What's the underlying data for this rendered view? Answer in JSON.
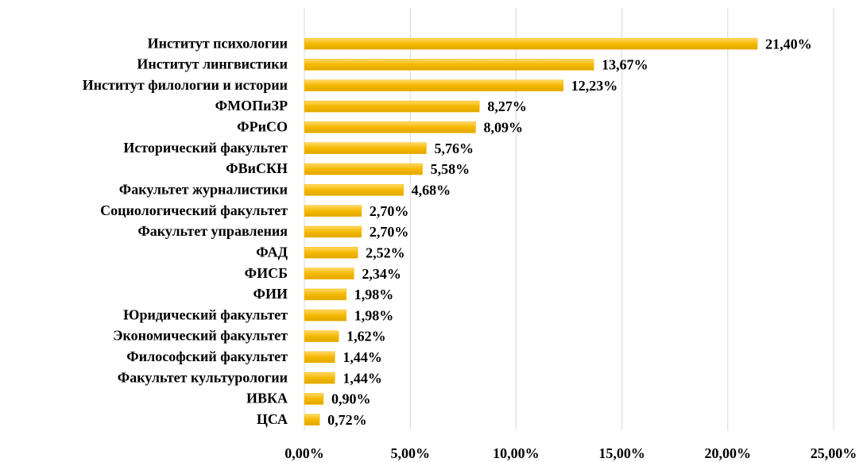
{
  "chart_data": {
    "type": "bar",
    "orientation": "horizontal",
    "categories": [
      "Институт психологии",
      "Институт лингвистики",
      "Институт филологии и истории",
      "ФМОПиЗР",
      "ФРиСО",
      "Исторический факультет",
      "ФВиСКН",
      "Факультет журналистики",
      "Социологический факультет",
      "Факультет управления",
      "ФАД",
      "ФИСБ",
      "ФИИ",
      "Юридический факультет",
      "Экономический факультет",
      "Философский факультет",
      "Факультет культурологии",
      "ИВКА",
      "ЦСА"
    ],
    "values": [
      21.4,
      13.67,
      12.23,
      8.27,
      8.09,
      5.76,
      5.58,
      4.68,
      2.7,
      2.7,
      2.52,
      2.34,
      1.98,
      1.98,
      1.62,
      1.44,
      1.44,
      0.9,
      0.72
    ],
    "value_labels": [
      "21,40%",
      "13,67%",
      "12,23%",
      "8,27%",
      "8,09%",
      "5,76%",
      "5,58%",
      "4,68%",
      "2,70%",
      "2,70%",
      "2,52%",
      "2,34%",
      "1,98%",
      "1,98%",
      "1,62%",
      "1,44%",
      "1,44%",
      "0,90%",
      "0,72%"
    ],
    "color": "#f5b800",
    "xlim": [
      0,
      25
    ],
    "xticks": [
      {
        "value": 0,
        "label": "0,00%"
      },
      {
        "value": 5,
        "label": "5,00%"
      },
      {
        "value": 10,
        "label": "10,00%"
      },
      {
        "value": 15,
        "label": "15,00%"
      },
      {
        "value": 20,
        "label": "20,00%"
      },
      {
        "value": 25,
        "label": "25,00%"
      }
    ],
    "grid": true
  }
}
